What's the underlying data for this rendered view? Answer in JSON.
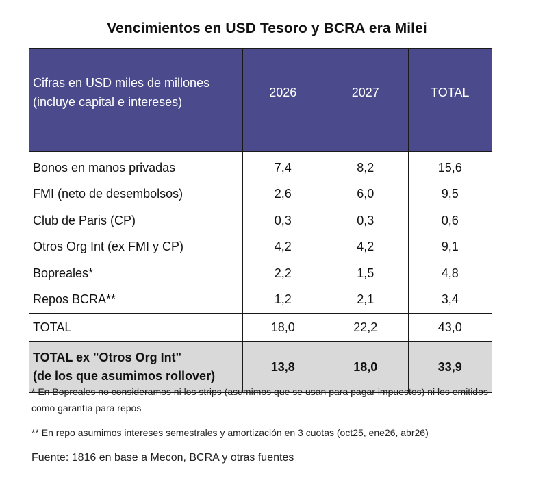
{
  "title": "Vencimientos en USD Tesoro y BCRA era Milei",
  "header": {
    "label_line1": "Cifras en USD miles de millones",
    "label_line2": "(incluye capital e intereses)",
    "col_2026": "2026",
    "col_2027": "2027",
    "col_total": "TOTAL"
  },
  "rows": [
    {
      "label": "Bonos en manos privadas",
      "v2026": "7,4",
      "v2027": "8,2",
      "total": "15,6"
    },
    {
      "label": "FMI (neto de desembolsos)",
      "v2026": "2,6",
      "v2027": "6,0",
      "total": "9,5"
    },
    {
      "label": "Club de Paris (CP)",
      "v2026": "0,3",
      "v2027": "0,3",
      "total": "0,6"
    },
    {
      "label": "Otros Org Int (ex FMI y CP)",
      "v2026": "4,2",
      "v2027": "4,2",
      "total": "9,1"
    },
    {
      "label": "Bopreales*",
      "v2026": "2,2",
      "v2027": "1,5",
      "total": "4,8"
    },
    {
      "label": "Repos BCRA**",
      "v2026": "1,2",
      "v2027": "2,1",
      "total": "3,4"
    }
  ],
  "total_row": {
    "label": "TOTAL",
    "v2026": "18,0",
    "v2027": "22,2",
    "total": "43,0"
  },
  "ex_total_row": {
    "label_line1": "TOTAL ex \"Otros Org Int\"",
    "label_line2": "(de los que asumimos rollover)",
    "v2026": "13,8",
    "v2027": "18,0",
    "total": "33,9"
  },
  "notes": {
    "note1": "* En Bopreales no consideramos ni los strips (asumimos que se usan para pagar impuestos) ni los emitidos como garantía para repos",
    "note2": "** En repo asumimos intereses semestrales y amortización en 3 cuotas (oct25, ene26, abr26)",
    "source": "Fuente: 1816 en base a Mecon, BCRA y otras fuentes"
  },
  "colors": {
    "header_bg": "#4a4a8c",
    "header_text": "#ffffff",
    "ex_total_bg": "#d9d9d9"
  }
}
